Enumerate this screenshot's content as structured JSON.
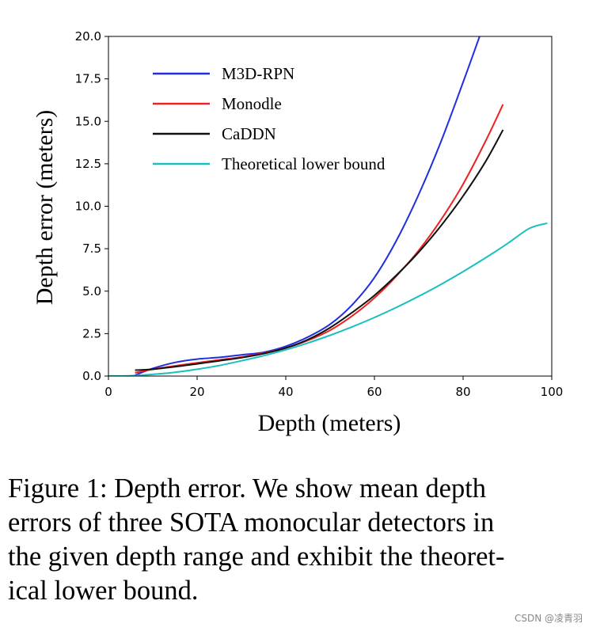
{
  "chart_data": {
    "type": "line",
    "title": "",
    "xlabel": "Depth (meters)",
    "ylabel": "Depth error (meters)",
    "xlim": [
      0,
      100
    ],
    "ylim": [
      0,
      20
    ],
    "x_ticks": [
      "0",
      "20",
      "40",
      "60",
      "80",
      "100"
    ],
    "y_ticks": [
      "0.0",
      "2.5",
      "5.0",
      "7.5",
      "10.0",
      "12.5",
      "15.0",
      "17.5",
      "20.0"
    ],
    "grid": false,
    "legend_position": "top-left",
    "series": [
      {
        "name": "M3D-RPN",
        "color": "#1f2fe0",
        "x": [
          6,
          10,
          15,
          20,
          25,
          30,
          35,
          40,
          45,
          50,
          55,
          60,
          65,
          70,
          75,
          80,
          84
        ],
        "y": [
          0.05,
          0.45,
          0.8,
          1.0,
          1.1,
          1.25,
          1.4,
          1.75,
          2.3,
          3.05,
          4.2,
          5.8,
          8.0,
          10.7,
          13.8,
          17.3,
          20.2
        ]
      },
      {
        "name": "Monodle",
        "color": "#ee2222",
        "x": [
          6,
          10,
          15,
          20,
          25,
          30,
          35,
          40,
          45,
          50,
          55,
          60,
          65,
          70,
          75,
          80,
          85,
          89
        ],
        "y": [
          0.2,
          0.4,
          0.6,
          0.78,
          0.95,
          1.12,
          1.35,
          1.65,
          2.1,
          2.7,
          3.55,
          4.6,
          5.9,
          7.4,
          9.2,
          11.3,
          13.8,
          16.0
        ]
      },
      {
        "name": "CaDDN",
        "color": "#111111",
        "x": [
          6,
          10,
          15,
          20,
          25,
          30,
          35,
          40,
          45,
          50,
          55,
          60,
          65,
          70,
          75,
          80,
          85,
          89
        ],
        "y": [
          0.35,
          0.4,
          0.55,
          0.72,
          0.9,
          1.08,
          1.32,
          1.65,
          2.15,
          2.85,
          3.75,
          4.75,
          5.95,
          7.3,
          8.85,
          10.6,
          12.6,
          14.5
        ]
      },
      {
        "name": "Theoretical lower bound",
        "color": "#1abfbf",
        "x": [
          0,
          5,
          10,
          15,
          20,
          25,
          30,
          35,
          40,
          45,
          50,
          55,
          60,
          65,
          70,
          75,
          80,
          85,
          90,
          95,
          99
        ],
        "y": [
          0.0,
          0.02,
          0.1,
          0.22,
          0.4,
          0.62,
          0.9,
          1.2,
          1.55,
          1.95,
          2.4,
          2.9,
          3.45,
          4.05,
          4.7,
          5.4,
          6.15,
          6.95,
          7.8,
          8.7,
          9.0
        ]
      }
    ]
  },
  "caption": {
    "lines": [
      "Figure 1: Depth error. We show mean depth",
      "errors of three SOTA monocular detectors in",
      "the given depth range and exhibit the theoret-",
      "ical lower bound."
    ]
  },
  "watermark": "CSDN @凌青羽"
}
